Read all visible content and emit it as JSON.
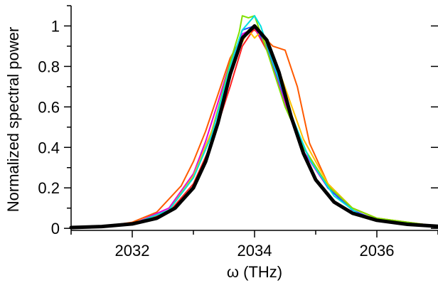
{
  "chart_data": {
    "type": "line",
    "title": "",
    "xlabel": "ω (THz)",
    "ylabel": "Normalized spectral power",
    "xlim": [
      2031.0,
      2037.0
    ],
    "ylim": [
      -0.01,
      1.1
    ],
    "x_ticks": [
      2032,
      2034,
      2036
    ],
    "x_tick_labels": [
      "2032",
      "2034",
      "2036"
    ],
    "y_ticks": [
      0,
      0.2,
      0.4,
      0.6,
      0.8,
      1.0
    ],
    "y_tick_labels": [
      "0",
      "0.2",
      "0.4",
      "0.6",
      "0.8",
      "1"
    ],
    "grid": false,
    "legend": "none",
    "series": [
      {
        "color": "#ff5a00",
        "style": "thin",
        "x": [
          2031.0,
          2031.6,
          2032.0,
          2032.4,
          2032.8,
          2033.0,
          2033.2,
          2033.4,
          2033.6,
          2033.8,
          2034.0,
          2034.2,
          2034.3,
          2034.5,
          2034.7,
          2034.9,
          2035.2,
          2035.6,
          2036.0,
          2036.5,
          2037.0
        ],
        "y": [
          0.005,
          0.012,
          0.03,
          0.08,
          0.21,
          0.33,
          0.48,
          0.66,
          0.84,
          0.95,
          0.98,
          0.93,
          0.9,
          0.88,
          0.7,
          0.42,
          0.22,
          0.1,
          0.05,
          0.02,
          0.01
        ]
      },
      {
        "color": "#ff2020",
        "style": "thin",
        "x": [
          2031.0,
          2032.0,
          2032.6,
          2033.0,
          2033.3,
          2033.6,
          2033.8,
          2034.0,
          2034.2,
          2034.5,
          2034.8,
          2035.2,
          2035.6,
          2036.0,
          2037.0
        ],
        "y": [
          0.004,
          0.02,
          0.08,
          0.22,
          0.42,
          0.7,
          0.9,
          0.99,
          0.88,
          0.62,
          0.4,
          0.21,
          0.1,
          0.05,
          0.01
        ]
      },
      {
        "color": "#e000e0",
        "style": "thin",
        "x": [
          2031.0,
          2032.0,
          2032.6,
          2033.0,
          2033.2,
          2033.4,
          2033.6,
          2033.8,
          2034.0,
          2034.2,
          2034.5,
          2034.8,
          2035.2,
          2035.6,
          2036.0,
          2037.0
        ],
        "y": [
          0.004,
          0.02,
          0.1,
          0.27,
          0.43,
          0.62,
          0.82,
          0.96,
          0.99,
          0.9,
          0.62,
          0.38,
          0.2,
          0.09,
          0.04,
          0.01
        ]
      },
      {
        "color": "#2050ff",
        "style": "thin",
        "x": [
          2031.0,
          2032.0,
          2032.6,
          2033.0,
          2033.3,
          2033.6,
          2033.8,
          2034.0,
          2034.2,
          2034.5,
          2034.8,
          2035.2,
          2035.6,
          2036.0,
          2037.0
        ],
        "y": [
          0.004,
          0.02,
          0.09,
          0.26,
          0.48,
          0.8,
          0.98,
          1.0,
          0.9,
          0.64,
          0.4,
          0.2,
          0.09,
          0.04,
          0.01
        ]
      },
      {
        "color": "#ffc000",
        "style": "thin",
        "x": [
          2031.0,
          2032.0,
          2032.6,
          2033.0,
          2033.3,
          2033.6,
          2033.9,
          2034.0,
          2034.1,
          2034.4,
          2034.8,
          2035.2,
          2035.6,
          2036.0,
          2037.0
        ],
        "y": [
          0.004,
          0.02,
          0.09,
          0.26,
          0.48,
          0.8,
          0.98,
          0.94,
          0.97,
          0.78,
          0.44,
          0.22,
          0.1,
          0.05,
          0.01
        ]
      },
      {
        "color": "#7fe000",
        "style": "thin",
        "x": [
          2031.0,
          2032.0,
          2032.6,
          2033.0,
          2033.3,
          2033.6,
          2033.75,
          2033.8,
          2033.9,
          2034.0,
          2034.2,
          2034.5,
          2034.8,
          2035.2,
          2035.6,
          2036.0,
          2037.0
        ],
        "y": [
          0.004,
          0.02,
          0.09,
          0.25,
          0.46,
          0.82,
          0.97,
          1.05,
          1.04,
          1.05,
          0.88,
          0.6,
          0.4,
          0.21,
          0.1,
          0.05,
          0.01
        ]
      },
      {
        "color": "#00e0e0",
        "style": "thin",
        "x": [
          2031.0,
          2032.0,
          2032.6,
          2033.0,
          2033.3,
          2033.6,
          2033.8,
          2034.0,
          2034.1,
          2034.3,
          2034.6,
          2034.9,
          2035.3,
          2035.7,
          2036.0,
          2037.0
        ],
        "y": [
          0.004,
          0.02,
          0.09,
          0.25,
          0.46,
          0.8,
          0.98,
          1.05,
          1.0,
          0.82,
          0.56,
          0.34,
          0.16,
          0.07,
          0.04,
          0.01
        ]
      },
      {
        "color": "#000000",
        "style": "thick",
        "x": [
          2031.0,
          2031.5,
          2032.0,
          2032.4,
          2032.7,
          2033.0,
          2033.2,
          2033.4,
          2033.6,
          2033.8,
          2034.0,
          2034.2,
          2034.4,
          2034.6,
          2034.8,
          2035.0,
          2035.3,
          2035.6,
          2036.0,
          2036.5,
          2037.0
        ],
        "y": [
          0.004,
          0.009,
          0.022,
          0.05,
          0.1,
          0.2,
          0.33,
          0.52,
          0.76,
          0.94,
          1.0,
          0.93,
          0.77,
          0.55,
          0.37,
          0.24,
          0.13,
          0.075,
          0.04,
          0.02,
          0.01
        ]
      }
    ]
  }
}
